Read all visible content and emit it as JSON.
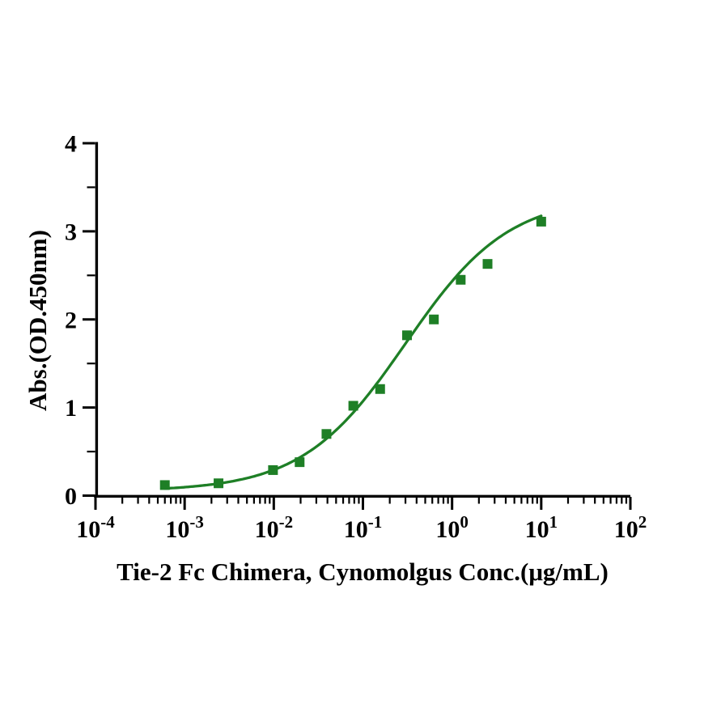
{
  "chart_data": {
    "type": "scatter",
    "title": "",
    "xlabel": "Tie-2 Fc Chimera, Cynomolgus Conc.(μg/mL)",
    "ylabel": "Abs.(OD.450nm)",
    "x_scale": "log10",
    "xlim": [
      0.0001,
      100
    ],
    "ylim": [
      0,
      4
    ],
    "x_tick_exponents": [
      -4,
      -3,
      -2,
      -1,
      0,
      1,
      2
    ],
    "x_tick_base": "10",
    "y_major_ticks": [
      0,
      1,
      2,
      3,
      4
    ],
    "y_minor_ticks": [
      0.5,
      1.5,
      2.5,
      3.5
    ],
    "grid": false,
    "legend_position": "none",
    "series": [
      {
        "name": "Tie-2 Fc Chimera, Cynomolgus",
        "marker": "filled-square",
        "color": "#1e7f26",
        "x": [
          0.0006,
          0.0024,
          0.0098,
          0.0195,
          0.039,
          0.078,
          0.156,
          0.3125,
          0.625,
          1.25,
          2.5,
          10
        ],
        "y": [
          0.12,
          0.14,
          0.29,
          0.38,
          0.7,
          1.02,
          1.21,
          1.82,
          2.0,
          2.45,
          2.63,
          3.11
        ]
      }
    ],
    "fit_curve": {
      "model": "4PL",
      "bottom": 0.05,
      "top": 3.4,
      "ec50": 0.3,
      "hill": 0.75,
      "x_start": 0.0006,
      "x_end": 10,
      "color": "#1e7f26"
    }
  },
  "colors": {
    "background": "#ffffff",
    "axis": "#000000",
    "text": "#000000",
    "accent_green": "#1e7f26"
  }
}
